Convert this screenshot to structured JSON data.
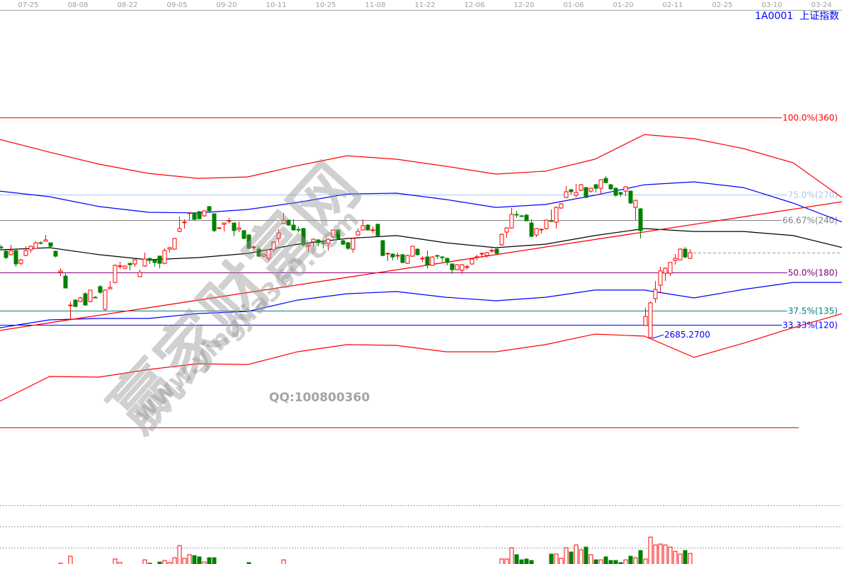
{
  "header": {
    "symbol": "1A0001  上证指数",
    "date_ticks": [
      "07-25",
      "08-08",
      "08-22",
      "09-05",
      "09-20",
      "10-11",
      "10-25",
      "11-08",
      "11-22",
      "12-06",
      "12-20",
      "01-06",
      "01-20",
      "02-11",
      "02-25",
      "03-10",
      "03-24"
    ]
  },
  "watermark": {
    "brand": "赢家财富网",
    "url": "www.yingjia360.com",
    "qq": "QQ:100800360"
  },
  "colors": {
    "up": "#ff0000",
    "down": "#008000",
    "ma": "#000000",
    "band_inner": "#0000ff",
    "band_outer": "#ff0000",
    "trendline": "#ff0000"
  },
  "chart_data": {
    "type": "candlestick",
    "title": "",
    "ylim": [
      1700,
      4755
    ],
    "candles_ohlc": [
      [
        3258,
        3272,
        3245,
        3257
      ],
      [
        3232,
        3241,
        3183,
        3192
      ],
      [
        3210,
        3272,
        3205,
        3236
      ],
      [
        3236,
        3241,
        3134,
        3152
      ],
      [
        3156,
        3183,
        3143,
        3178
      ],
      [
        3205,
        3263,
        3201,
        3236
      ],
      [
        3241,
        3267,
        3223,
        3263
      ],
      [
        3250,
        3294,
        3245,
        3285
      ],
      [
        3285,
        3294,
        3276,
        3284
      ],
      [
        3294,
        3334,
        3294,
        3303
      ],
      [
        3285,
        3285,
        3250,
        3263
      ],
      [
        3232,
        3236,
        3192,
        3201
      ],
      [
        3099,
        3125,
        3076,
        3108
      ],
      [
        3076,
        3094,
        3001,
        3001
      ],
      [
        2890,
        2916,
        2801,
        2894
      ],
      [
        2925,
        2930,
        2880,
        2885
      ],
      [
        2916,
        2945,
        2912,
        2939
      ],
      [
        2965,
        2975,
        2890,
        2894
      ],
      [
        2916,
        2990,
        2912,
        2988
      ],
      [
        2943,
        2950,
        2938,
        2942
      ],
      [
        3010,
        3019,
        2965,
        2974
      ],
      [
        2868,
        2992,
        2859,
        2988
      ],
      [
        2996,
        3045,
        2992,
        3005
      ],
      [
        3036,
        3150,
        3030,
        3143
      ],
      [
        3139,
        3165,
        3121,
        3140
      ],
      [
        3125,
        3143,
        3121,
        3139
      ],
      [
        3156,
        3160,
        3112,
        3147
      ],
      [
        3152,
        3183,
        3134,
        3178
      ],
      [
        3072,
        3116,
        3072,
        3099
      ],
      [
        3139,
        3223,
        3134,
        3183
      ],
      [
        3187,
        3190,
        3152,
        3174
      ],
      [
        3174,
        3178,
        3134,
        3161
      ],
      [
        3201,
        3205,
        3125,
        3156
      ],
      [
        3156,
        3250,
        3150,
        3236
      ],
      [
        3245,
        3258,
        3223,
        3254
      ],
      [
        3245,
        3316,
        3241,
        3312
      ],
      [
        3356,
        3449,
        3352,
        3374
      ],
      [
        3414,
        3432,
        3374,
        3415
      ],
      [
        3472,
        3476,
        3427,
        3473
      ],
      [
        3472,
        3476,
        3427,
        3432
      ],
      [
        3480,
        3485,
        3432,
        3436
      ],
      [
        3454,
        3489,
        3449,
        3485
      ],
      [
        3512,
        3516,
        3480,
        3485
      ],
      [
        3467,
        3470,
        3352,
        3361
      ],
      [
        3378,
        3380,
        3370,
        3379
      ],
      [
        3401,
        3412,
        3356,
        3409
      ],
      [
        3423,
        3441,
        3405,
        3424
      ],
      [
        3409,
        3412,
        3325,
        3361
      ],
      [
        3369,
        3418,
        3352,
        3378
      ],
      [
        3361,
        3365,
        3307,
        3312
      ],
      [
        3334,
        3338,
        3245,
        3250
      ],
      [
        3258,
        3267,
        3241,
        3259
      ],
      [
        3245,
        3263,
        3196,
        3201
      ],
      [
        3201,
        3218,
        3196,
        3214
      ],
      [
        3187,
        3245,
        3170,
        3241
      ],
      [
        3241,
        3294,
        3223,
        3290
      ],
      [
        3312,
        3369,
        3285,
        3347
      ],
      [
        3405,
        3472,
        3401,
        3427
      ],
      [
        3427,
        3432,
        3392,
        3396
      ],
      [
        3396,
        3432,
        3361,
        3365
      ],
      [
        3369,
        3387,
        3352,
        3368
      ],
      [
        3374,
        3378,
        3263,
        3272
      ],
      [
        3263,
        3276,
        3227,
        3272
      ],
      [
        3290,
        3312,
        3263,
        3307
      ],
      [
        3303,
        3307,
        3263,
        3285
      ],
      [
        3285,
        3303,
        3250,
        3284
      ],
      [
        3281,
        3312,
        3236,
        3307
      ],
      [
        3321,
        3369,
        3316,
        3365
      ],
      [
        3365,
        3369,
        3307,
        3312
      ],
      [
        3298,
        3303,
        3272,
        3276
      ],
      [
        3285,
        3290,
        3241,
        3250
      ],
      [
        3245,
        3316,
        3223,
        3312
      ],
      [
        3334,
        3374,
        3330,
        3356
      ],
      [
        3365,
        3432,
        3361,
        3392
      ],
      [
        3396,
        3401,
        3361,
        3365
      ],
      [
        3365,
        3387,
        3347,
        3366
      ],
      [
        3401,
        3405,
        3325,
        3330
      ],
      [
        3298,
        3303,
        3201,
        3205
      ],
      [
        3218,
        3223,
        3170,
        3219
      ],
      [
        3214,
        3218,
        3174,
        3196
      ],
      [
        3205,
        3223,
        3178,
        3206
      ],
      [
        3210,
        3214,
        3156,
        3161
      ],
      [
        3156,
        3210,
        3152,
        3205
      ],
      [
        3201,
        3267,
        3196,
        3263
      ],
      [
        3245,
        3250,
        3205,
        3210
      ],
      [
        3187,
        3201,
        3165,
        3188
      ],
      [
        3196,
        3236,
        3125,
        3147
      ],
      [
        3143,
        3201,
        3139,
        3196
      ],
      [
        3205,
        3210,
        3183,
        3204
      ],
      [
        3196,
        3201,
        3165,
        3195
      ],
      [
        3187,
        3192,
        3143,
        3161
      ],
      [
        3152,
        3156,
        3090,
        3116
      ],
      [
        3116,
        3152,
        3112,
        3147
      ],
      [
        3112,
        3152,
        3090,
        3147
      ],
      [
        3134,
        3147,
        3116,
        3135
      ],
      [
        3152,
        3187,
        3147,
        3183
      ],
      [
        3196,
        3210,
        3174,
        3197
      ],
      [
        3218,
        3223,
        3192,
        3219
      ],
      [
        3205,
        3227,
        3192,
        3223
      ],
      [
        3236,
        3250,
        3223,
        3237
      ],
      [
        3245,
        3250,
        3214,
        3218
      ],
      [
        3272,
        3343,
        3267,
        3338
      ],
      [
        3352,
        3383,
        3316,
        3378
      ],
      [
        3378,
        3503,
        3374,
        3463
      ],
      [
        3463,
        3485,
        3441,
        3462
      ],
      [
        3454,
        3460,
        3449,
        3453
      ],
      [
        3458,
        3467,
        3420,
        3423
      ],
      [
        3409,
        3432,
        3321,
        3325
      ],
      [
        3334,
        3378,
        3321,
        3374
      ],
      [
        3369,
        3374,
        3343,
        3370
      ],
      [
        3374,
        3432,
        3369,
        3427
      ],
      [
        3423,
        3494,
        3418,
        3422
      ],
      [
        3414,
        3512,
        3374,
        3507
      ],
      [
        3503,
        3534,
        3498,
        3529
      ],
      [
        3569,
        3640,
        3565,
        3605
      ],
      [
        3618,
        3623,
        3587,
        3605
      ],
      [
        3583,
        3654,
        3569,
        3600
      ],
      [
        3614,
        3654,
        3609,
        3649
      ],
      [
        3631,
        3636,
        3565,
        3569
      ],
      [
        3609,
        3631,
        3600,
        3627
      ],
      [
        3649,
        3654,
        3600,
        3627
      ],
      [
        3627,
        3684,
        3587,
        3680
      ],
      [
        3689,
        3702,
        3658,
        3662
      ],
      [
        3649,
        3654,
        3618,
        3623
      ],
      [
        3627,
        3631,
        3574,
        3583
      ],
      [
        3600,
        3605,
        3574,
        3591
      ],
      [
        3609,
        3640,
        3578,
        3636
      ],
      [
        3609,
        3614,
        3530,
        3534
      ],
      [
        3507,
        3556,
        3427,
        3551
      ],
      [
        3498,
        3503,
        3312,
        3361
      ],
      [
        2766,
        2877,
        2762,
        2823
      ],
      [
        2690,
        2916,
        2685.27,
        2908
      ],
      [
        2934,
        3045,
        2908,
        2992
      ],
      [
        3019,
        3134,
        2974,
        3108
      ],
      [
        3094,
        3130,
        3045,
        3125
      ],
      [
        3094,
        3165,
        3076,
        3161
      ],
      [
        3174,
        3214,
        3147,
        3187
      ],
      [
        3178,
        3250,
        3174,
        3245
      ],
      [
        3245,
        3258,
        3187,
        3196
      ],
      [
        3187,
        3245,
        3183,
        3223
      ]
    ],
    "band_x_index": [
      0,
      10,
      20,
      30,
      40,
      50,
      60,
      70,
      80,
      90,
      100,
      110,
      120,
      130,
      140,
      150,
      160,
      170
    ],
    "bands": {
      "outer_upper": [
        3933,
        3853,
        3778,
        3720,
        3689,
        3698,
        3769,
        3831,
        3809,
        3765,
        3716,
        3734,
        3809,
        3964,
        3938,
        3876,
        3787,
        3565
      ],
      "inner_upper": [
        3609,
        3574,
        3512,
        3476,
        3472,
        3494,
        3538,
        3591,
        3596,
        3556,
        3507,
        3525,
        3583,
        3649,
        3667,
        3631,
        3534,
        3414
      ],
      "middle": [
        3241,
        3254,
        3210,
        3178,
        3192,
        3218,
        3276,
        3312,
        3330,
        3285,
        3254,
        3276,
        3330,
        3374,
        3356,
        3356,
        3330,
        3254
      ],
      "inner_lower": [
        2752,
        2801,
        2810,
        2810,
        2841,
        2854,
        2925,
        2965,
        2979,
        2943,
        2921,
        2943,
        2988,
        2988,
        2939,
        2992,
        3036,
        3036
      ],
      "outer_lower": [
        2291,
        2446,
        2442,
        2490,
        2526,
        2521,
        2601,
        2646,
        2641,
        2601,
        2601,
        2646,
        2712,
        2699,
        2566,
        2655,
        2752,
        2841
      ]
    },
    "trendline": {
      "start": [
        0,
        2735
      ],
      "end": [
        170,
        3543
      ]
    },
    "fib_levels": [
      {
        "label": "100.0%(360)",
        "price": 4071,
        "color": "#ff0000"
      },
      {
        "label": "75.0%(270)",
        "price": 3587,
        "color": "#a8c8ee"
      },
      {
        "label": "66.67%(240)",
        "price": 3427,
        "color": "#808080"
      },
      {
        "label": "50.0%(180)",
        "price": 3099,
        "color": "#800080"
      },
      {
        "label": "37.5%(135)",
        "price": 2859,
        "color": "#008080"
      },
      {
        "label": "33.33%(120)",
        "price": 2769,
        "color": "#0000ff"
      },
      {
        "label": "",
        "price": 2126,
        "color": "#ff0000"
      }
    ],
    "last_price_line": 3223,
    "low_marker": {
      "index": 131,
      "label": "2685.2700"
    },
    "volume": [
      [
        12,
        0.27
      ],
      [
        14,
        0.6
      ],
      [
        23,
        0.47
      ],
      [
        24,
        0.3
      ],
      [
        29,
        0.43
      ],
      [
        30,
        0.27
      ],
      [
        32,
        0.33
      ],
      [
        33,
        0.4
      ],
      [
        34,
        0.3
      ],
      [
        35,
        0.53
      ],
      [
        36,
        1.1
      ],
      [
        37,
        0.5
      ],
      [
        38,
        0.67
      ],
      [
        39,
        0.63
      ],
      [
        40,
        0.57
      ],
      [
        41,
        0.33
      ],
      [
        42,
        0.53
      ],
      [
        43,
        0.53
      ],
      [
        50,
        0.3
      ],
      [
        57,
        0.43
      ],
      [
        101,
        0.47
      ],
      [
        102,
        0.47
      ],
      [
        103,
        1.0
      ],
      [
        104,
        0.67
      ],
      [
        105,
        0.43
      ],
      [
        106,
        0.47
      ],
      [
        107,
        0.4
      ],
      [
        111,
        0.7
      ],
      [
        112,
        0.7
      ],
      [
        113,
        0.5
      ],
      [
        114,
        1.0
      ],
      [
        115,
        0.8
      ],
      [
        116,
        1.13
      ],
      [
        117,
        0.9
      ],
      [
        118,
        1.03
      ],
      [
        119,
        0.67
      ],
      [
        120,
        0.43
      ],
      [
        121,
        0.43
      ],
      [
        122,
        0.57
      ],
      [
        123,
        0.4
      ],
      [
        124,
        0.4
      ],
      [
        125,
        0.3
      ],
      [
        126,
        0.43
      ],
      [
        127,
        0.6
      ],
      [
        128,
        0.53
      ],
      [
        129,
        0.87
      ],
      [
        130,
        0.47
      ],
      [
        131,
        1.5
      ],
      [
        132,
        1.13
      ],
      [
        133,
        1.17
      ],
      [
        134,
        1.13
      ],
      [
        135,
        1.03
      ],
      [
        136,
        0.83
      ],
      [
        137,
        0.7
      ],
      [
        138,
        0.87
      ],
      [
        139,
        0.73
      ]
    ],
    "volume_gridlines": [
      1,
      2,
      3
    ]
  }
}
